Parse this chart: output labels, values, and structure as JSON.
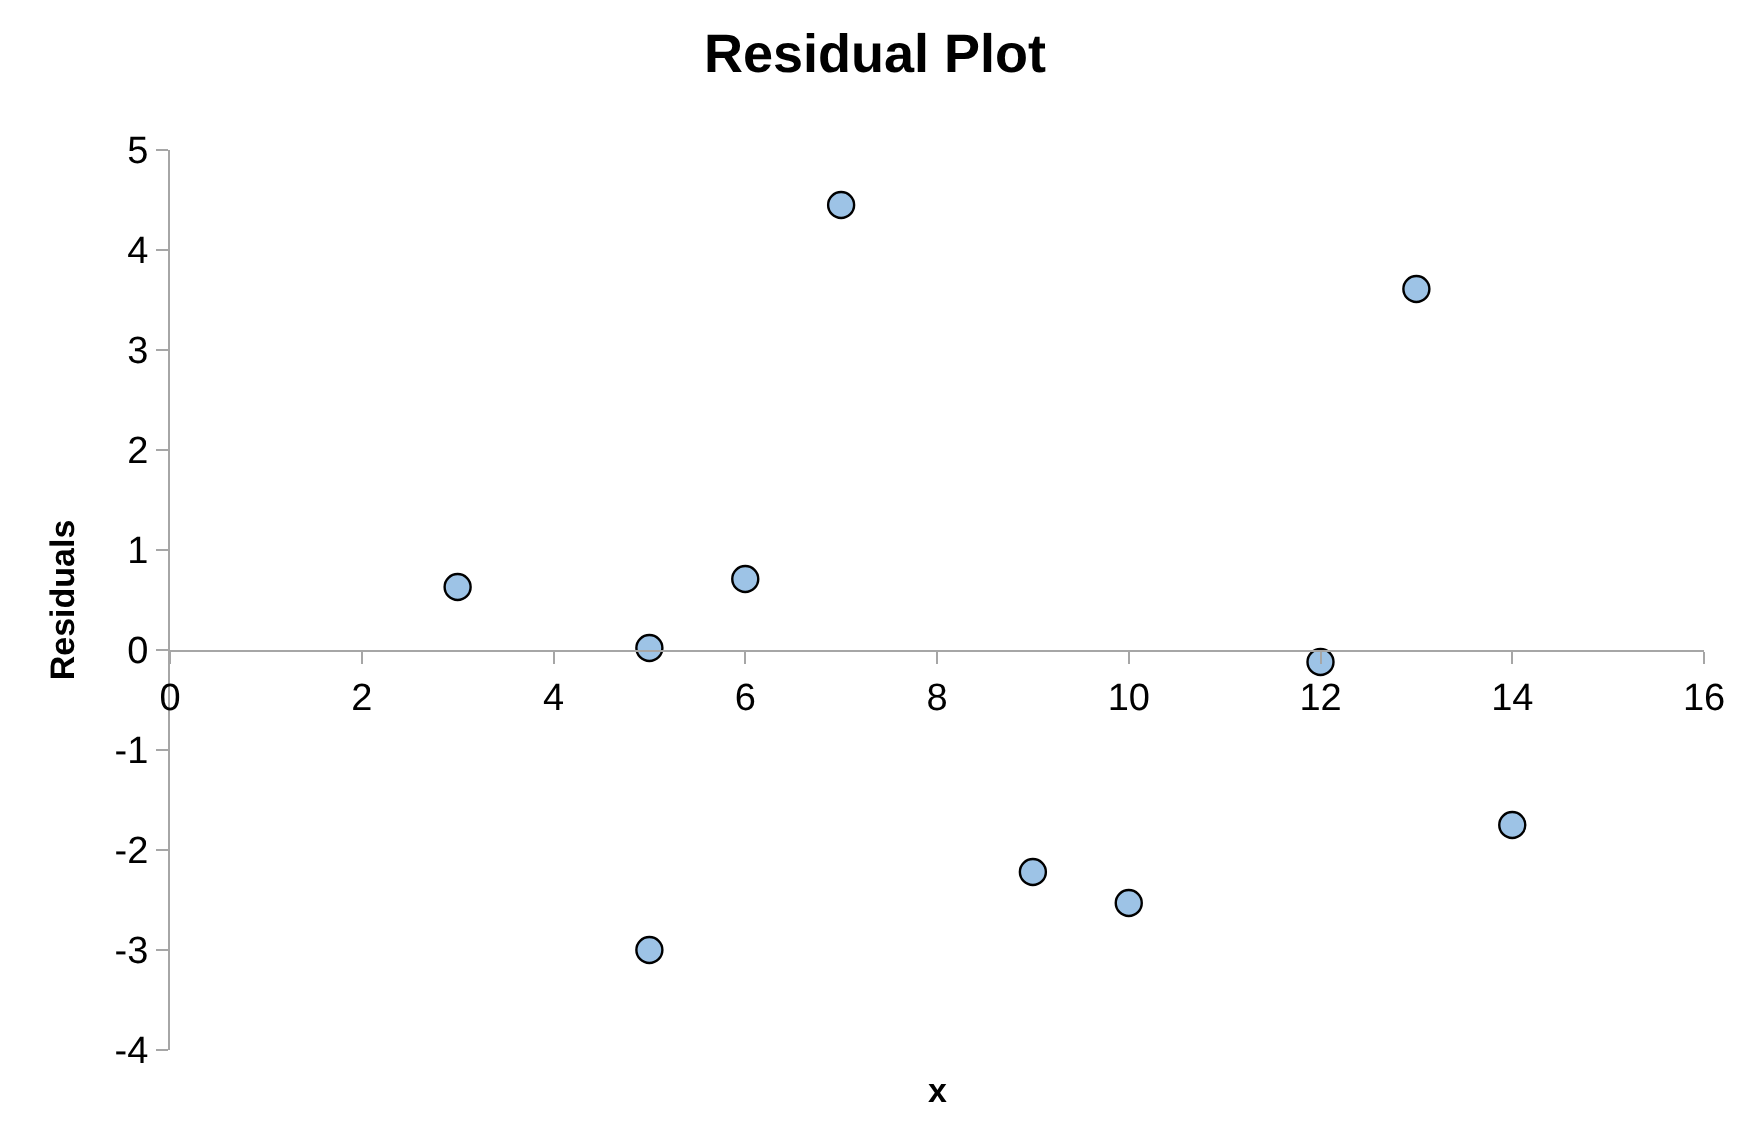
{
  "chart_data": {
    "type": "scatter",
    "title": "Residual Plot",
    "xlabel": "x",
    "ylabel": "Residuals",
    "x": [
      3,
      5,
      5,
      6,
      7,
      9,
      10,
      12,
      13,
      14
    ],
    "series": [
      {
        "color": "#9dc3e6",
        "values": [
          0.63,
          0.02,
          -3.0,
          0.71,
          4.45,
          -2.22,
          -2.53,
          -0.12,
          3.61,
          -1.75
        ]
      }
    ],
    "xlim": [
      0,
      16
    ],
    "xticks": [
      0,
      2,
      4,
      6,
      8,
      10,
      12,
      14,
      16
    ],
    "ylim": [
      -4,
      5
    ],
    "yticks": [
      -4,
      -3,
      -2,
      -1,
      0,
      1,
      2,
      3,
      4,
      5
    ],
    "legend": false,
    "marker": "circle"
  }
}
